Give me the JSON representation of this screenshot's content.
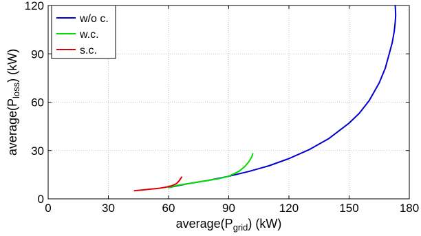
{
  "chart_data": {
    "type": "line",
    "xlabel": {
      "prefix": "average(P",
      "sub": "grid",
      "suffix": ") (kW)"
    },
    "ylabel": {
      "prefix": "average(P",
      "sub": "loss",
      "suffix": ") (kW)"
    },
    "xlim": [
      0,
      180
    ],
    "ylim": [
      0,
      120
    ],
    "xticks": [
      0,
      30,
      60,
      90,
      120,
      150,
      180
    ],
    "yticks": [
      0,
      30,
      60,
      90,
      120
    ],
    "grid": true,
    "legend_position": "top-left",
    "series": [
      {
        "name": "w/o c.",
        "color": "#0000cc",
        "x": [
          60,
          70,
          80,
          90,
          100,
          110,
          120,
          130,
          140,
          150,
          155,
          160,
          165,
          168,
          170,
          171.5,
          172.5,
          173,
          173.2,
          173
        ],
        "y": [
          7,
          9.5,
          11.5,
          14,
          17,
          20.5,
          25,
          30.5,
          37.5,
          47,
          53,
          61,
          72,
          81,
          90,
          97,
          104,
          110,
          114,
          120
        ]
      },
      {
        "name": "w.c.",
        "color": "#00dd00",
        "x": [
          60,
          65,
          70,
          75,
          80,
          85,
          90,
          95,
          98,
          100,
          101.5,
          102
        ],
        "y": [
          7,
          8.5,
          9.5,
          10.5,
          11.5,
          12.5,
          14,
          17,
          20,
          23,
          26,
          28
        ]
      },
      {
        "name": "s.c.",
        "color": "#dd0000",
        "x": [
          43,
          47,
          51,
          55,
          59,
          62,
          64,
          65.5,
          66.5
        ],
        "y": [
          5,
          5.5,
          6,
          6.5,
          7.3,
          8.3,
          9.5,
          11.5,
          13.5
        ]
      }
    ]
  }
}
